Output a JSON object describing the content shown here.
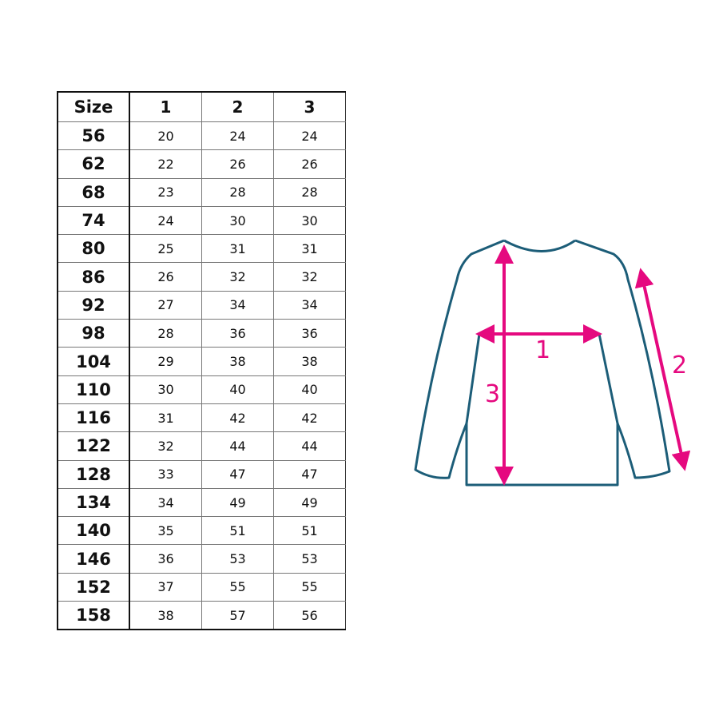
{
  "table": {
    "headers": [
      "Size",
      "1",
      "2",
      "3"
    ],
    "rows": [
      [
        "56",
        "20",
        "24",
        "24"
      ],
      [
        "62",
        "22",
        "26",
        "26"
      ],
      [
        "68",
        "23",
        "28",
        "28"
      ],
      [
        "74",
        "24",
        "30",
        "30"
      ],
      [
        "80",
        "25",
        "31",
        "31"
      ],
      [
        "86",
        "26",
        "32",
        "32"
      ],
      [
        "92",
        "27",
        "34",
        "34"
      ],
      [
        "98",
        "28",
        "36",
        "36"
      ],
      [
        "104",
        "29",
        "38",
        "38"
      ],
      [
        "110",
        "30",
        "40",
        "40"
      ],
      [
        "116",
        "31",
        "42",
        "42"
      ],
      [
        "122",
        "32",
        "44",
        "44"
      ],
      [
        "128",
        "33",
        "47",
        "47"
      ],
      [
        "134",
        "34",
        "49",
        "49"
      ],
      [
        "140",
        "35",
        "51",
        "51"
      ],
      [
        "146",
        "36",
        "53",
        "53"
      ],
      [
        "152",
        "37",
        "55",
        "55"
      ],
      [
        "158",
        "38",
        "57",
        "56"
      ]
    ]
  },
  "diagram": {
    "labels": {
      "width": "1",
      "sleeve": "2",
      "length": "3"
    },
    "colors": {
      "outline": "#1c5d78",
      "arrow": "#e5097f"
    }
  }
}
